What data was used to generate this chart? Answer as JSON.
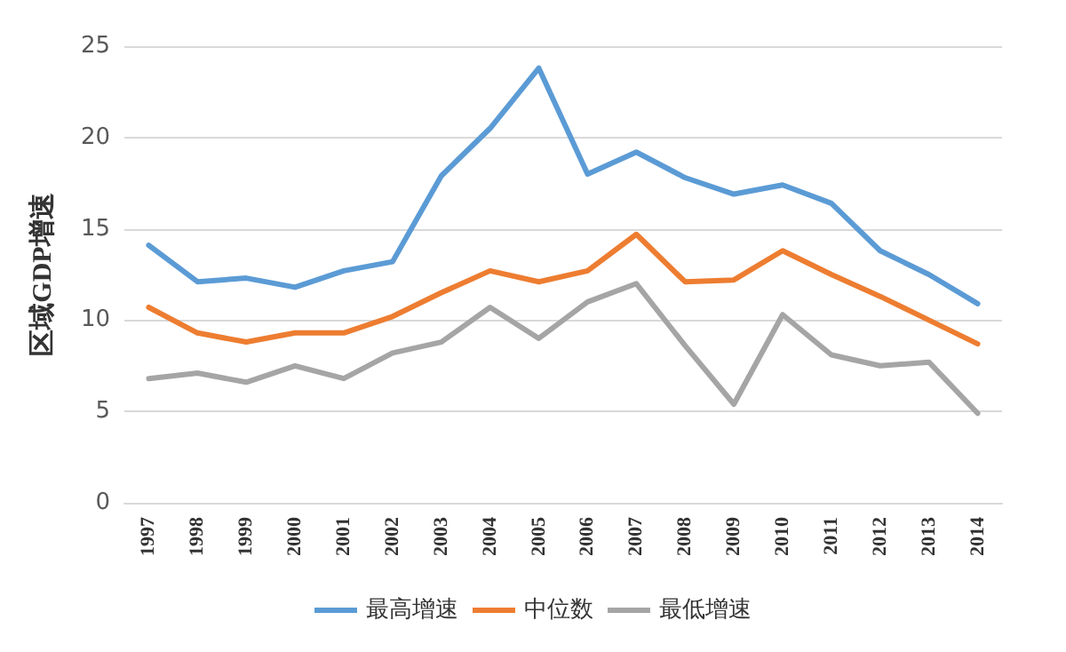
{
  "chart_data": {
    "type": "line",
    "ylabel": "区域GDP增速",
    "categories": [
      "1997",
      "1998",
      "1999",
      "2000",
      "2001",
      "2002",
      "2003",
      "2004",
      "2005",
      "2006",
      "2007",
      "2008",
      "2009",
      "2010",
      "2011",
      "2012",
      "2013",
      "2014"
    ],
    "series": [
      {
        "name": "最高增速",
        "color": "#5b9bd5",
        "values": [
          14.1,
          12.1,
          12.3,
          11.8,
          12.7,
          13.2,
          17.9,
          20.5,
          23.8,
          18.0,
          19.2,
          17.8,
          16.9,
          17.4,
          16.4,
          13.8,
          12.5,
          10.9
        ]
      },
      {
        "name": "中位数",
        "color": "#ed7d31",
        "values": [
          10.7,
          9.3,
          8.8,
          9.3,
          9.3,
          10.2,
          11.5,
          12.7,
          12.1,
          12.7,
          14.7,
          12.1,
          12.2,
          13.8,
          12.5,
          11.3,
          10.0,
          8.7
        ]
      },
      {
        "name": "最低增速",
        "color": "#a5a5a5",
        "values": [
          6.8,
          7.1,
          6.6,
          7.5,
          6.8,
          8.2,
          8.8,
          10.7,
          9.0,
          11.0,
          12.0,
          8.6,
          5.4,
          10.3,
          8.1,
          7.5,
          7.7,
          4.9
        ]
      }
    ],
    "ylim": [
      0,
      25
    ],
    "yticks": [
      0,
      5,
      10,
      15,
      20,
      25
    ],
    "grid": "y",
    "legend": "bottom",
    "marker": "none",
    "line_style": "solid"
  }
}
